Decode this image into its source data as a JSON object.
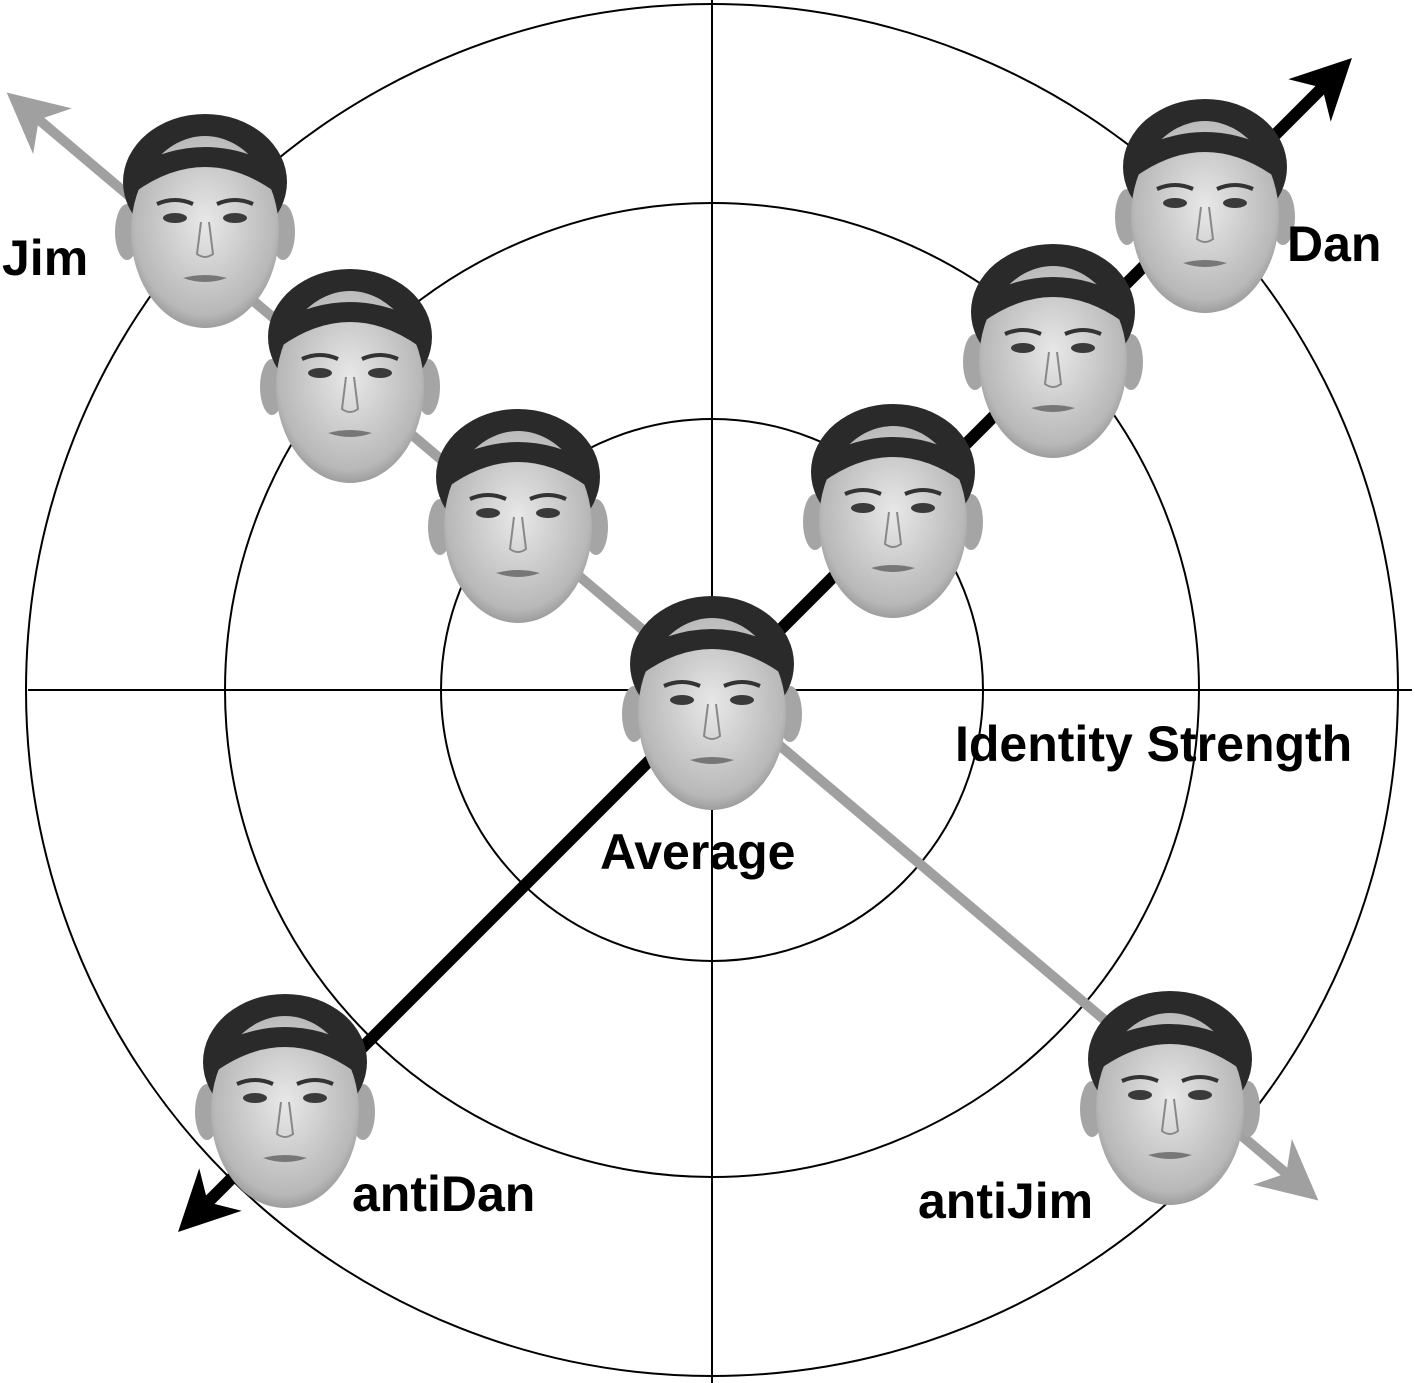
{
  "labels": {
    "jim": "Jim",
    "dan": "Dan",
    "axis": "Identity Strength",
    "average": "Average",
    "anti_dan": "antiDan",
    "anti_jim": "antiJim"
  }
}
